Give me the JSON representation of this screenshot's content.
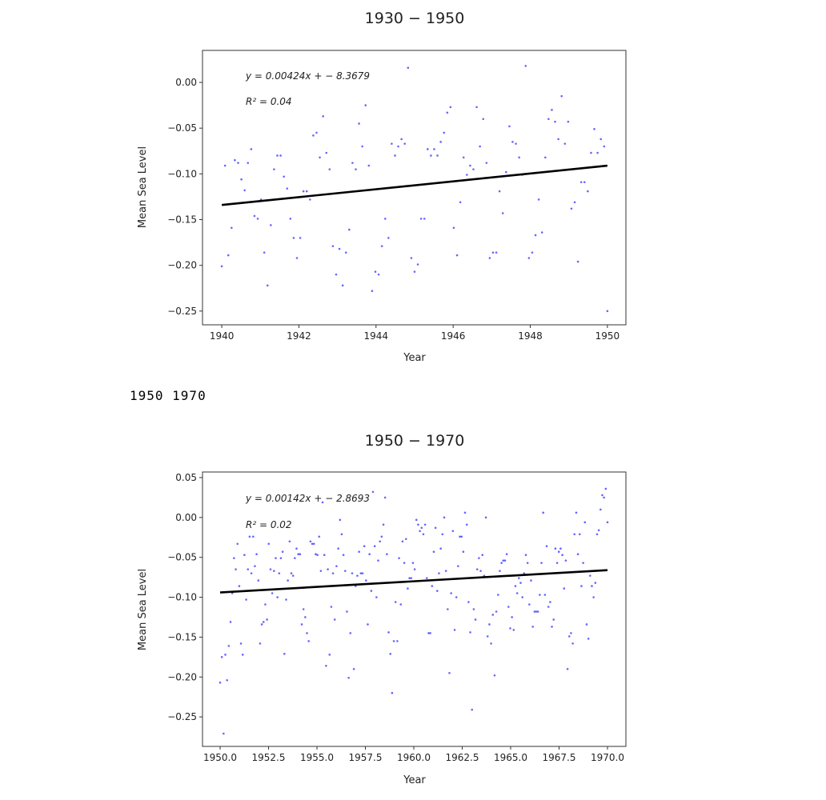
{
  "output_text": "1950 1970",
  "chart_data": [
    {
      "type": "scatter",
      "title": "1930 − 1950",
      "xlabel": "Year",
      "ylabel": "Mean Sea Level",
      "xlim": [
        1939.5,
        1950.48
      ],
      "ylim": [
        -0.265,
        0.035
      ],
      "xticks": [
        1940,
        1942,
        1944,
        1946,
        1948,
        1950
      ],
      "xtick_labels": [
        "1940",
        "1942",
        "1944",
        "1946",
        "1948",
        "1950"
      ],
      "yticks": [
        0.0,
        -0.05,
        -0.1,
        -0.15,
        -0.2,
        -0.25
      ],
      "ytick_labels": [
        "0.00",
        "−0.05",
        "−0.10",
        "−0.15",
        "−0.20",
        "−0.25"
      ],
      "grid": false,
      "point_color": "#0000ff",
      "line_color": "#000000",
      "annotation_equation": "y = 0.00424x + − 8.3679",
      "annotation_r2": "R² = 0.04",
      "points_x_range": [
        1940,
        1950
      ],
      "points_y": [
        -0.201,
        -0.091,
        -0.189,
        -0.159,
        -0.085,
        -0.088,
        -0.106,
        -0.118,
        -0.088,
        -0.073,
        -0.146,
        -0.149,
        -0.128,
        -0.186,
        -0.222,
        -0.156,
        -0.095,
        -0.08,
        -0.08,
        -0.103,
        -0.116,
        -0.149,
        -0.17,
        -0.192,
        -0.17,
        -0.119,
        -0.119,
        -0.128,
        -0.058,
        -0.055,
        -0.082,
        -0.037,
        -0.077,
        -0.095,
        -0.179,
        -0.21,
        -0.182,
        -0.222,
        -0.186,
        -0.161,
        -0.088,
        -0.095,
        -0.045,
        -0.07,
        -0.025,
        -0.091,
        -0.228,
        -0.207,
        -0.21,
        -0.179,
        -0.149,
        -0.17,
        -0.067,
        -0.08,
        -0.07,
        -0.062,
        -0.067,
        0.016,
        -0.192,
        -0.207,
        -0.199,
        -0.149,
        -0.149,
        -0.073,
        -0.08,
        -0.073,
        -0.08,
        -0.065,
        -0.055,
        -0.033,
        -0.027,
        -0.159,
        -0.189,
        -0.131,
        -0.082,
        -0.101,
        -0.091,
        -0.095,
        -0.027,
        -0.07,
        -0.04,
        -0.088,
        -0.192,
        -0.186,
        -0.186,
        -0.119,
        -0.143,
        -0.098,
        -0.048,
        -0.065,
        -0.067,
        -0.082,
        -0.101,
        0.018,
        -0.192,
        -0.186,
        -0.167,
        -0.128,
        -0.164,
        -0.082,
        -0.04,
        -0.03,
        -0.043,
        -0.062,
        -0.015,
        -0.067,
        -0.043,
        -0.138,
        -0.131,
        -0.196,
        -0.109,
        -0.109,
        -0.119,
        -0.077,
        -0.051,
        -0.077,
        -0.062,
        -0.07,
        -0.25
      ],
      "fit_line": {
        "x": [
          1940,
          1950
        ],
        "y": [
          -0.134,
          -0.091
        ]
      }
    },
    {
      "type": "scatter",
      "title": "1950 − 1970",
      "xlabel": "Year",
      "ylabel": "Mean Sea Level",
      "xlim": [
        1949.09,
        1970.95
      ],
      "ylim": [
        -0.287,
        0.057
      ],
      "xticks": [
        1950,
        1952.5,
        1955,
        1957.5,
        1960,
        1962.5,
        1965,
        1967.5,
        1970
      ],
      "xtick_labels": [
        "1950.0",
        "1952.5",
        "1955.0",
        "1957.5",
        "1960.0",
        "1962.5",
        "1965.0",
        "1967.5",
        "1970.0"
      ],
      "yticks": [
        0.05,
        0.0,
        -0.05,
        -0.1,
        -0.15,
        -0.2,
        -0.25
      ],
      "ytick_labels": [
        "0.05",
        "0.00",
        "−0.05",
        "−0.10",
        "−0.15",
        "−0.20",
        "−0.25"
      ],
      "grid": false,
      "point_color": "#0000ff",
      "line_color": "#000000",
      "annotation_equation": "y = 0.00142x + − 2.8693",
      "annotation_r2": "R² = 0.02",
      "points_x_range": [
        1950,
        1970
      ],
      "points_y": [
        -0.207,
        -0.175,
        -0.271,
        -0.172,
        -0.204,
        -0.161,
        -0.131,
        -0.095,
        -0.051,
        -0.065,
        -0.033,
        -0.086,
        -0.158,
        -0.172,
        -0.047,
        -0.103,
        -0.065,
        -0.024,
        -0.07,
        -0.024,
        -0.061,
        -0.046,
        -0.079,
        -0.158,
        -0.134,
        -0.131,
        -0.109,
        -0.128,
        -0.033,
        -0.065,
        -0.095,
        -0.067,
        -0.051,
        -0.1,
        -0.07,
        -0.051,
        -0.043,
        -0.171,
        -0.103,
        -0.079,
        -0.03,
        -0.07,
        -0.073,
        -0.051,
        -0.039,
        -0.046,
        -0.046,
        -0.134,
        -0.115,
        -0.125,
        -0.145,
        -0.155,
        -0.03,
        -0.033,
        -0.033,
        -0.046,
        -0.047,
        -0.024,
        -0.067,
        0.019,
        -0.047,
        -0.186,
        -0.065,
        -0.172,
        -0.112,
        -0.07,
        -0.128,
        -0.061,
        -0.039,
        -0.003,
        -0.021,
        -0.047,
        -0.067,
        -0.118,
        -0.201,
        -0.145,
        -0.07,
        -0.19,
        -0.086,
        -0.073,
        -0.043,
        -0.07,
        -0.07,
        -0.036,
        -0.079,
        -0.134,
        -0.046,
        -0.092,
        0.032,
        -0.036,
        -0.1,
        -0.054,
        -0.03,
        -0.024,
        -0.009,
        0.025,
        -0.046,
        -0.144,
        -0.171,
        -0.22,
        -0.155,
        -0.106,
        -0.155,
        -0.051,
        -0.109,
        -0.03,
        -0.057,
        -0.027,
        -0.089,
        -0.076,
        -0.076,
        -0.057,
        -0.065,
        -0.003,
        -0.009,
        -0.017,
        -0.013,
        -0.021,
        -0.009,
        -0.076,
        -0.145,
        -0.145,
        -0.086,
        -0.043,
        -0.013,
        -0.092,
        -0.07,
        -0.039,
        -0.021,
        0.0,
        -0.067,
        -0.115,
        -0.195,
        -0.095,
        -0.017,
        -0.141,
        -0.1,
        -0.061,
        -0.024,
        -0.024,
        -0.043,
        0.006,
        -0.009,
        -0.106,
        -0.144,
        -0.241,
        -0.115,
        -0.128,
        -0.065,
        -0.051,
        -0.067,
        -0.047,
        -0.073,
        0.0,
        -0.149,
        -0.134,
        -0.158,
        -0.122,
        -0.198,
        -0.118,
        -0.097,
        -0.067,
        -0.057,
        -0.054,
        -0.054,
        -0.046,
        -0.112,
        -0.139,
        -0.125,
        -0.141,
        -0.086,
        -0.095,
        -0.076,
        -0.082,
        -0.1,
        -0.07,
        -0.047,
        -0.057,
        -0.109,
        -0.079,
        -0.137,
        -0.118,
        -0.118,
        -0.118,
        -0.097,
        -0.057,
        0.006,
        -0.097,
        -0.036,
        -0.112,
        -0.106,
        -0.137,
        -0.128,
        -0.039,
        -0.057,
        -0.043,
        -0.039,
        -0.047,
        -0.089,
        -0.054,
        -0.19,
        -0.149,
        -0.145,
        -0.158,
        -0.021,
        0.006,
        -0.046,
        -0.021,
        -0.086,
        -0.057,
        -0.006,
        -0.134,
        -0.152,
        -0.073,
        -0.086,
        -0.1,
        -0.082,
        -0.021,
        -0.016,
        0.01,
        0.028,
        0.025,
        0.036,
        -0.006
      ],
      "fit_line": {
        "x": [
          1950,
          1970
        ],
        "y": [
          -0.094,
          -0.066
        ]
      }
    }
  ]
}
